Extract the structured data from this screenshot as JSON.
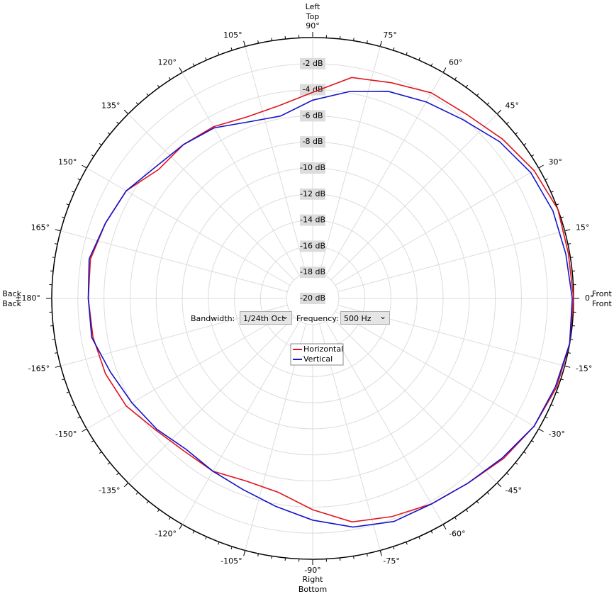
{
  "chart_data": {
    "type": "polar",
    "x": [
      -170,
      -160,
      -150,
      -140,
      -130,
      -120,
      -110,
      -100,
      -90,
      -80,
      -70,
      -60,
      -50,
      -40,
      -30,
      -20,
      -10,
      0,
      10,
      20,
      30,
      40,
      50,
      60,
      70,
      80,
      90,
      100,
      110,
      120,
      130,
      140,
      150,
      160,
      170,
      180
    ],
    "series": [
      {
        "name": "Horizontal",
        "color": "#e0141e",
        "values": [
          -2.9,
          -3.1,
          -3.5,
          -4.3,
          -4.7,
          -4.7,
          -5.1,
          -4.9,
          -3.8,
          -2.6,
          -2.2,
          -1.8,
          -1.5,
          -0.9,
          -0.4,
          -0.1,
          0,
          0,
          -0.1,
          0,
          -0.4,
          -1.0,
          -1.6,
          -1.8,
          -2.4,
          -2.8,
          -4.2,
          -5.0,
          -5.2,
          -4.8,
          -4.6,
          -4.6,
          -3.5,
          -3.1,
          -2.7,
          -2.8
        ]
      },
      {
        "name": "Vertical",
        "color": "#1414c8",
        "values": [
          -2.8,
          -3.5,
          -4.0,
          -4.4,
          -4.9,
          -4.7,
          -4.4,
          -3.8,
          -3.0,
          -2.2,
          -1.8,
          -1.8,
          -1.5,
          -1.0,
          -0.4,
          -0.2,
          0,
          -0.1,
          -0.3,
          -0.4,
          -0.7,
          -1.3,
          -2.1,
          -2.6,
          -3.1,
          -3.9,
          -4.8,
          -5.8,
          -5.6,
          -4.9,
          -4.6,
          -4.3,
          -3.5,
          -3.1,
          -2.6,
          -2.8
        ]
      }
    ],
    "rlim": [
      -20,
      0
    ],
    "rticks": [
      {
        "value": -2,
        "label": "-2 dB"
      },
      {
        "value": -4,
        "label": "-4 dB"
      },
      {
        "value": -6,
        "label": "-6 dB"
      },
      {
        "value": -8,
        "label": "-8 dB"
      },
      {
        "value": -10,
        "label": "-10 dB"
      },
      {
        "value": -12,
        "label": "-12 dB"
      },
      {
        "value": -14,
        "label": "-14 dB"
      },
      {
        "value": -16,
        "label": "-16 dB"
      },
      {
        "value": -18,
        "label": "-18 dB"
      },
      {
        "value": -20,
        "label": "-20 dB"
      }
    ],
    "thetaticks": [
      {
        "value": 0,
        "label": "0°"
      },
      {
        "value": 15,
        "label": "15°"
      },
      {
        "value": 30,
        "label": "30°"
      },
      {
        "value": 45,
        "label": "45°"
      },
      {
        "value": 60,
        "label": "60°"
      },
      {
        "value": 75,
        "label": "75°"
      },
      {
        "value": 90,
        "label": "90°"
      },
      {
        "value": 105,
        "label": "105°"
      },
      {
        "value": 120,
        "label": "120°"
      },
      {
        "value": 135,
        "label": "135°"
      },
      {
        "value": 150,
        "label": "150°"
      },
      {
        "value": 165,
        "label": "165°"
      },
      {
        "value": 180,
        "label": "±180°"
      },
      {
        "value": -165,
        "label": "-165°"
      },
      {
        "value": -150,
        "label": "-150°"
      },
      {
        "value": -135,
        "label": "-135°"
      },
      {
        "value": -120,
        "label": "-120°"
      },
      {
        "value": -105,
        "label": "-105°"
      },
      {
        "value": -90,
        "label": "-90°"
      },
      {
        "value": -75,
        "label": "-75°"
      },
      {
        "value": -60,
        "label": "-60°"
      },
      {
        "value": -45,
        "label": "-45°"
      },
      {
        "value": -30,
        "label": "-30°"
      },
      {
        "value": -15,
        "label": "-15°"
      }
    ],
    "grid": true,
    "direction_labels": {
      "top": [
        "Left",
        "Top"
      ],
      "bottom": [
        "Right",
        "Bottom"
      ],
      "right": [
        "Front",
        "Front"
      ],
      "left": [
        "Back",
        "Back"
      ]
    },
    "controls": {
      "bandwidth_label": "Bandwidth:",
      "bandwidth_value": "1/24th Oct",
      "frequency_label": "Frequency:",
      "frequency_value": "500 Hz"
    }
  }
}
